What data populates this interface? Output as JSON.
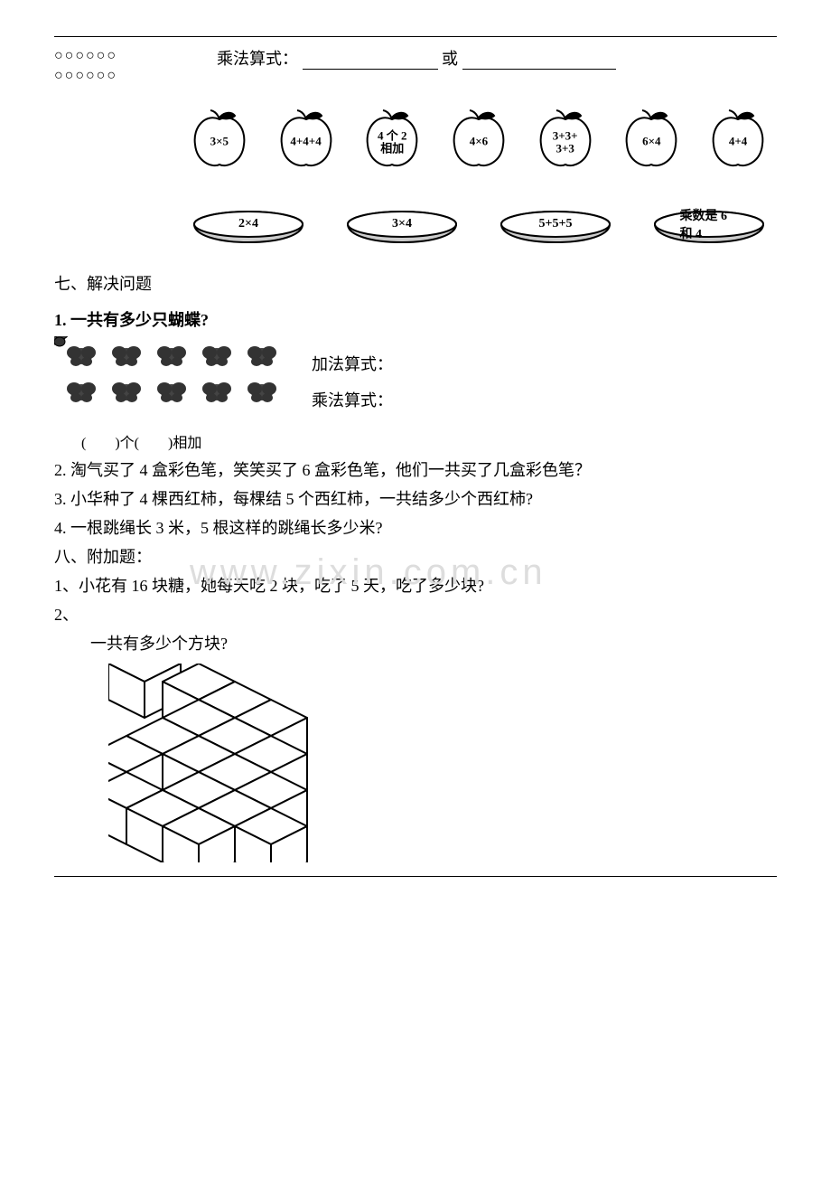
{
  "circles": {
    "row1": "○○○○○○",
    "row2": "○○○○○○"
  },
  "eq": {
    "label1": "乘法算式：",
    "label2": "或",
    "blank_w1": 150,
    "blank_w2": 170
  },
  "apples": [
    {
      "text": "3×5"
    },
    {
      "text": "4+4+4"
    },
    {
      "text": "4 个 2\n相加"
    },
    {
      "text": "4×6"
    },
    {
      "text": "3+3+\n3+3"
    },
    {
      "text": "6×4"
    },
    {
      "text": "4+4"
    }
  ],
  "plates": [
    {
      "text": "2×4"
    },
    {
      "text": "3×4"
    },
    {
      "text": "5+5+5"
    },
    {
      "text": "乘数是 6 和 4"
    }
  ],
  "sec7": "七、解决问题",
  "q1": {
    "title": "1. 一共有多少只蝴蝶?",
    "add_label": "加法算式：",
    "mul_label": "乘法算式：",
    "under": "(　　)个(　　)相加"
  },
  "q2": "2. 淘气买了 4 盒彩色笔，笑笑买了 6 盒彩色笔，他们一共买了几盒彩色笔？",
  "q3": "3. 小华种了 4 棵西红柿，每棵结 5 个西红柿，一共结多少个西红柿?",
  "q4": "4. 一根跳绳长 3 米，5 根这样的跳绳长多少米?",
  "sec8": "八、附加题：",
  "a1": "1、小花有 16 块糖，她每天吃 2 块，吃了 5 天，吃了多少块?",
  "a2_prefix": "2、",
  "a2_q": "一共有多少个方块?",
  "watermark": "www.zixin.com.cn",
  "svg": {
    "stroke": "#000",
    "stroke_w": 2
  }
}
